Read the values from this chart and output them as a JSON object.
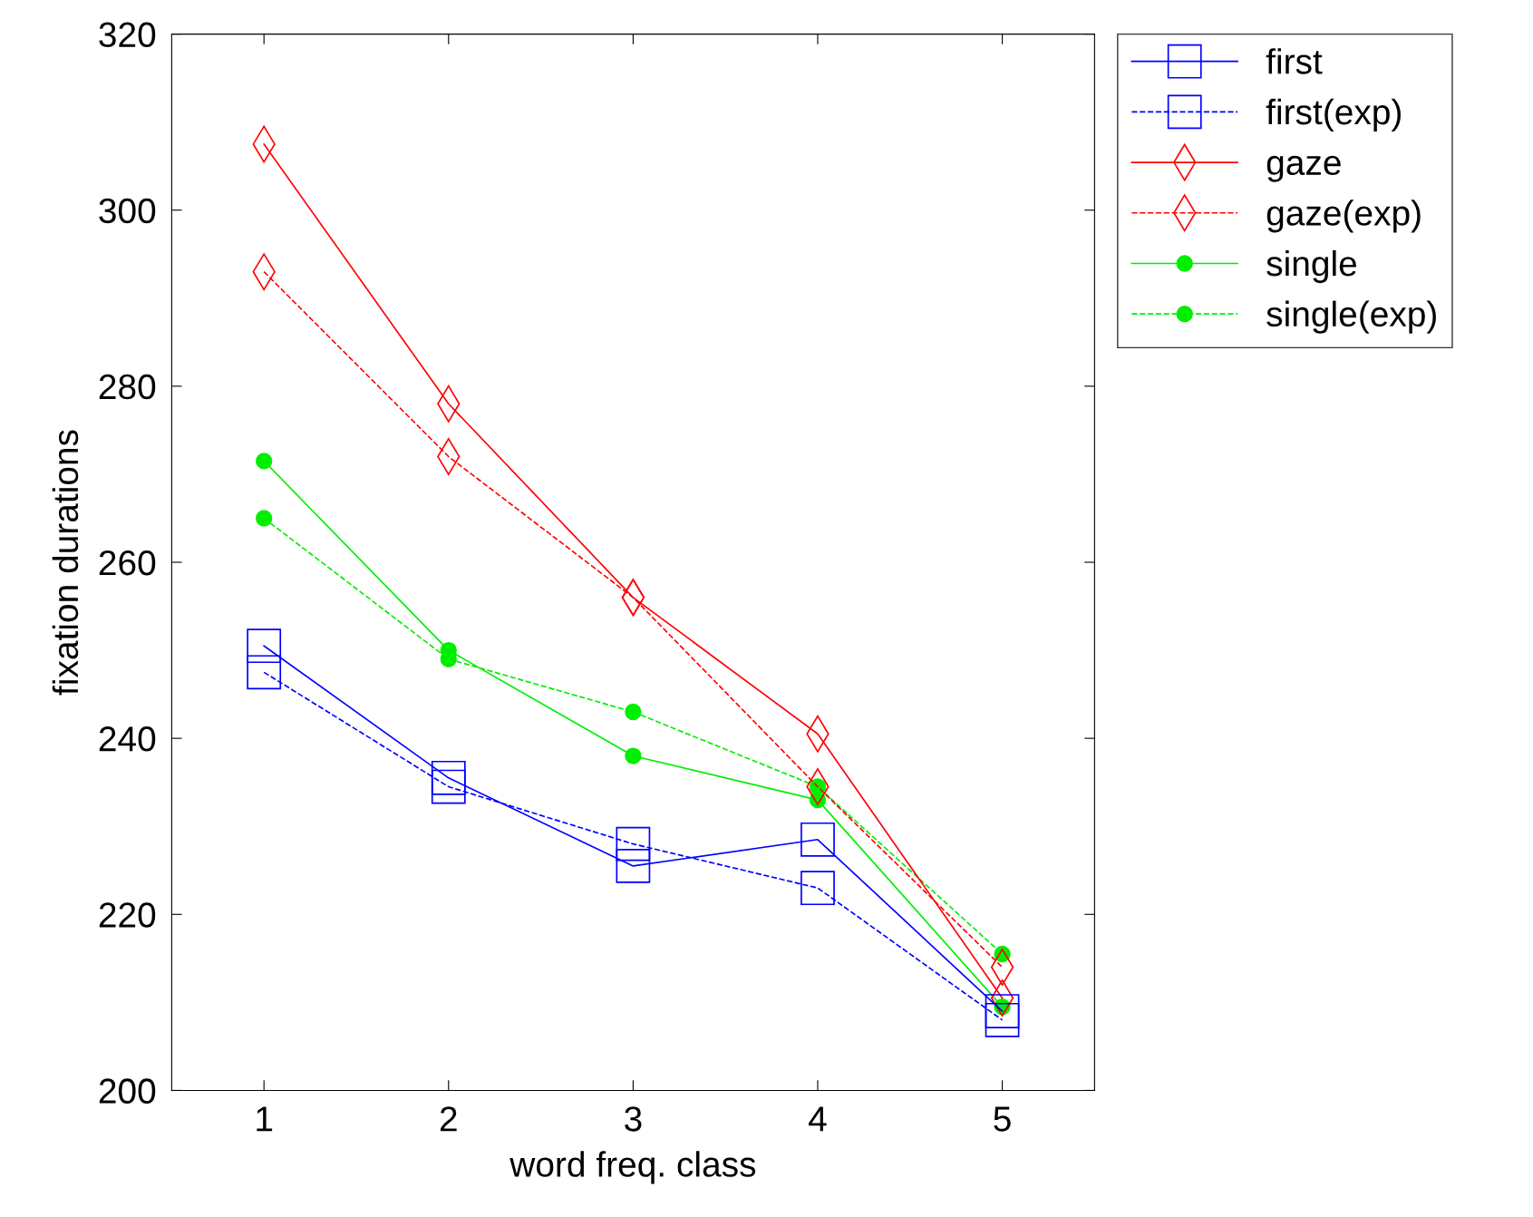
{
  "chart_data": {
    "type": "line",
    "xlabel": "word freq. class",
    "ylabel": "fixation durations",
    "x": [
      1,
      2,
      3,
      4,
      5
    ],
    "xlim": [
      0.5,
      5.5
    ],
    "xticks": [
      1,
      2,
      3,
      4,
      5
    ],
    "ylim": [
      200,
      320
    ],
    "yticks": [
      200,
      220,
      240,
      260,
      280,
      300,
      320
    ],
    "grid": false,
    "legend": "top right",
    "series": [
      {
        "name": "first",
        "color": "#0000ff",
        "marker": "square",
        "line_style": "solid",
        "values": [
          250.5,
          235.5,
          225.5,
          228.5,
          209
        ]
      },
      {
        "name": "first(exp)",
        "color": "#0000ff",
        "marker": "square",
        "line_style": "dashed",
        "values": [
          247.5,
          234.5,
          228,
          223,
          208
        ]
      },
      {
        "name": "gaze",
        "color": "#ff0000",
        "marker": "diamond",
        "line_style": "solid",
        "values": [
          307.5,
          278,
          256,
          240.5,
          210.5
        ]
      },
      {
        "name": "gaze(exp)",
        "color": "#ff0000",
        "marker": "diamond",
        "line_style": "dashed",
        "values": [
          293,
          272,
          256,
          234.5,
          214
        ]
      },
      {
        "name": "single",
        "color": "#00ee00",
        "marker": "circle",
        "line_style": "solid",
        "values": [
          271.5,
          250,
          238,
          233,
          209.5
        ]
      },
      {
        "name": "single(exp)",
        "color": "#00ee00",
        "marker": "circle",
        "line_style": "dashed",
        "values": [
          265,
          249,
          243,
          234.5,
          215.5
        ]
      }
    ]
  }
}
